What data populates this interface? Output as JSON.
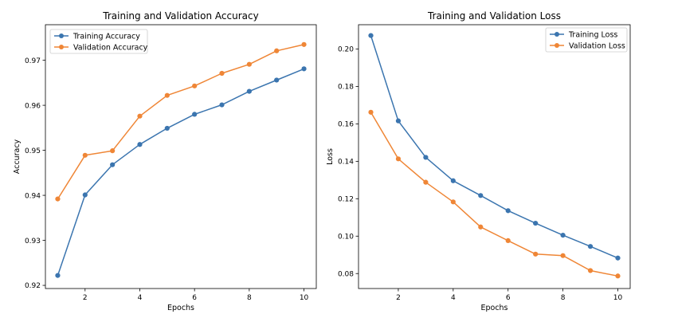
{
  "chart_data": [
    {
      "type": "line",
      "title": "Training and Validation Accuracy",
      "xlabel": "Epochs",
      "ylabel": "Accuracy",
      "x": [
        1,
        2,
        3,
        4,
        5,
        6,
        7,
        8,
        9,
        10
      ],
      "xticks": [
        2,
        4,
        6,
        8,
        10
      ],
      "xlim": [
        0.55,
        10.45
      ],
      "yticks": [
        0.92,
        0.93,
        0.94,
        0.95,
        0.96,
        0.97
      ],
      "ytick_labels": [
        "0.92",
        "0.93",
        "0.94",
        "0.95",
        "0.96",
        "0.97"
      ],
      "ylim": [
        0.9193,
        0.9779
      ],
      "grid": false,
      "legend_position": "upper-left",
      "series": [
        {
          "name": "Training Accuracy",
          "color": "#3B75AF",
          "values": [
            0.9222,
            0.9401,
            0.9468,
            0.9513,
            0.9549,
            0.958,
            0.9601,
            0.9631,
            0.9656,
            0.9681
          ]
        },
        {
          "name": "Validation Accuracy",
          "color": "#EF8636",
          "values": [
            0.9392,
            0.9489,
            0.9499,
            0.9576,
            0.9622,
            0.9643,
            0.9671,
            0.9691,
            0.9721,
            0.9735
          ]
        }
      ]
    },
    {
      "type": "line",
      "title": "Training and Validation Loss",
      "xlabel": "Epochs",
      "ylabel": "Loss",
      "x": [
        1,
        2,
        3,
        4,
        5,
        6,
        7,
        8,
        9,
        10
      ],
      "xticks": [
        2,
        4,
        6,
        8,
        10
      ],
      "xlim": [
        0.55,
        10.45
      ],
      "yticks": [
        0.08,
        0.1,
        0.12,
        0.14,
        0.16,
        0.18,
        0.2
      ],
      "ytick_labels": [
        "0.08",
        "0.10",
        "0.12",
        "0.14",
        "0.16",
        "0.18",
        "0.20"
      ],
      "ylim": [
        0.072,
        0.213
      ],
      "grid": false,
      "legend_position": "upper-right",
      "series": [
        {
          "name": "Training Loss",
          "color": "#3B75AF",
          "values": [
            0.2072,
            0.1616,
            0.1421,
            0.1296,
            0.1217,
            0.1136,
            0.1069,
            0.1005,
            0.0945,
            0.0883
          ]
        },
        {
          "name": "Validation Loss",
          "color": "#EF8636",
          "values": [
            0.1662,
            0.1413,
            0.1288,
            0.1183,
            0.1049,
            0.0976,
            0.0904,
            0.0896,
            0.0816,
            0.0787
          ]
        }
      ]
    }
  ]
}
